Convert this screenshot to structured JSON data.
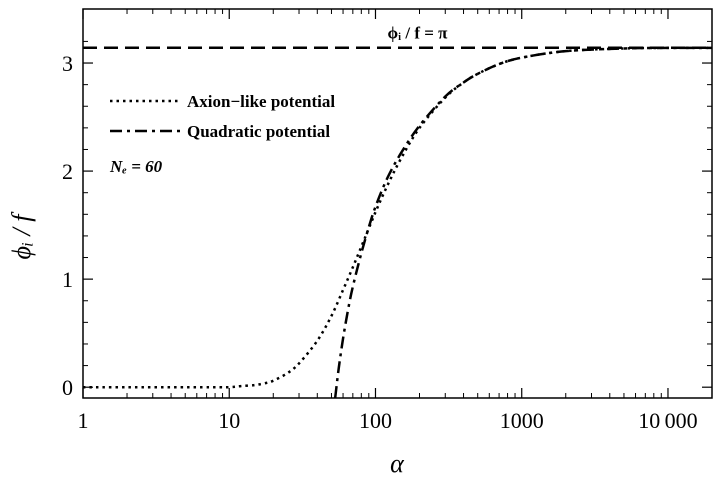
{
  "chart_data": {
    "type": "line",
    "xscale": "log",
    "xlim": [
      1,
      20000
    ],
    "ylim": [
      -0.1,
      3.5
    ],
    "x_ticks": [
      1,
      10,
      100,
      1000,
      10000
    ],
    "x_tick_labels": [
      "1",
      "10",
      "100",
      "1000",
      "10 000"
    ],
    "y_ticks": [
      0,
      1,
      2,
      3
    ],
    "y_tick_labels": [
      "0",
      "1",
      "2",
      "3"
    ],
    "xlabel": "α",
    "ylabel": "ϕᵢ / f",
    "grid": false,
    "legend_position": "top-left",
    "annotations": {
      "reference_line": "ϕᵢ / f = π",
      "efolds": "Nₑ = 60"
    },
    "reference_y": 3.14159,
    "series": [
      {
        "name": "Axion−like potential",
        "style": "dotted",
        "x": [
          1,
          2,
          5,
          8,
          10,
          12,
          15,
          18,
          20,
          25,
          30,
          40,
          50,
          60,
          70,
          80,
          100,
          120,
          150,
          200,
          300,
          400,
          500,
          700,
          1000,
          2000,
          5000,
          10000,
          20000
        ],
        "y": [
          0.0,
          0.0,
          0.0,
          0.0,
          0.0,
          0.01,
          0.02,
          0.04,
          0.06,
          0.13,
          0.22,
          0.43,
          0.66,
          0.9,
          1.11,
          1.3,
          1.62,
          1.86,
          2.12,
          2.4,
          2.68,
          2.82,
          2.9,
          2.99,
          3.05,
          3.11,
          3.135,
          3.14,
          3.14
        ]
      },
      {
        "name": "Quadratic potential",
        "style": "dashdot",
        "x": [
          53,
          56,
          60,
          65,
          70,
          80,
          90,
          100,
          120,
          150,
          200,
          300,
          400,
          500,
          700,
          1000,
          2000,
          5000,
          10000,
          20000
        ],
        "y": [
          -0.1,
          0.17,
          0.45,
          0.72,
          0.93,
          1.24,
          1.48,
          1.67,
          1.93,
          2.17,
          2.42,
          2.69,
          2.82,
          2.9,
          2.99,
          3.05,
          3.11,
          3.135,
          3.14,
          3.14
        ]
      }
    ]
  }
}
